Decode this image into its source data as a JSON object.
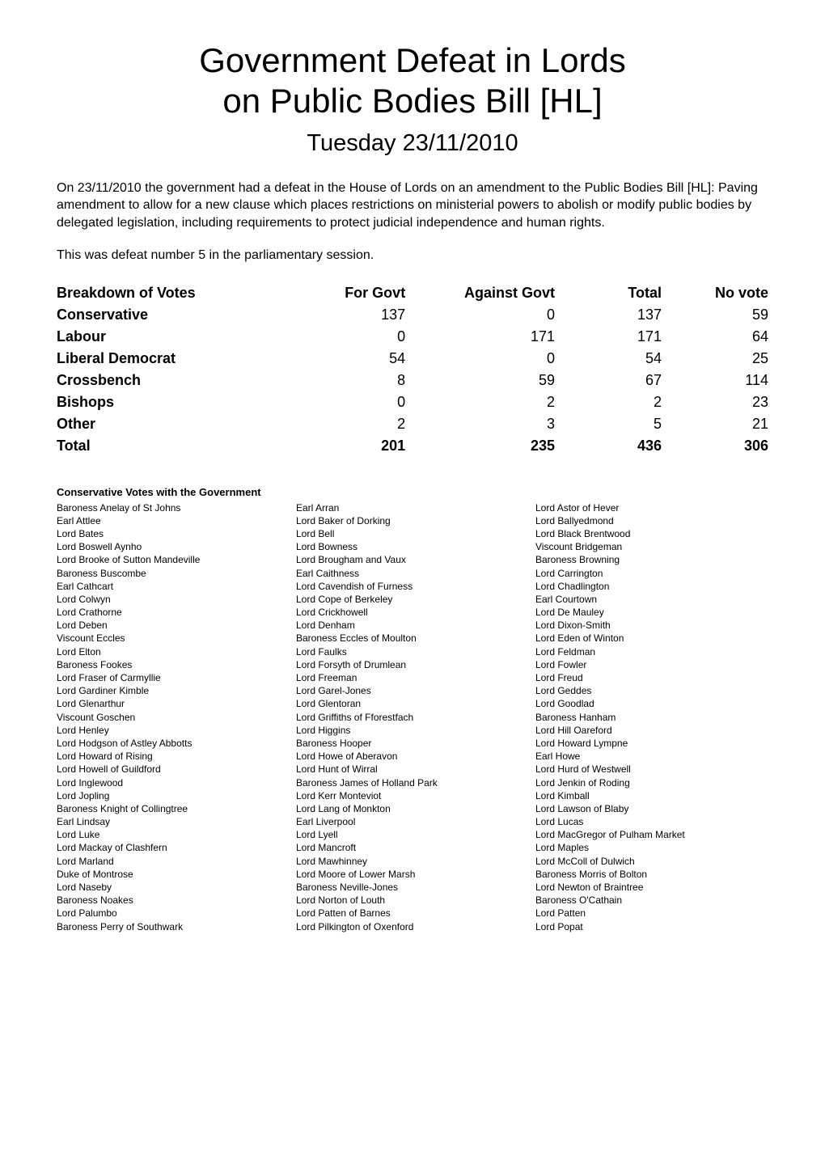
{
  "title": {
    "line1": "Government Defeat in Lords",
    "line2": "on Public Bodies Bill [HL]",
    "date": "Tuesday 23/11/2010"
  },
  "intro": "On 23/11/2010 the government had a defeat in the House of Lords on an amendment to the Public Bodies Bill [HL]: Paving amendment to allow for a new clause which places restrictions on ministerial powers to abolish or modify public bodies by delegated legislation, including requirements to protect judicial independence and human rights.",
  "defeat_no": "This was defeat number 5 in the parliamentary session.",
  "breakdown": {
    "headers": [
      "Breakdown of Votes",
      "For Govt",
      "Against Govt",
      "Total",
      "No vote"
    ],
    "rows": [
      {
        "party": "Conservative",
        "for": 137,
        "against": 0,
        "total": 137,
        "novote": 59
      },
      {
        "party": "Labour",
        "for": 0,
        "against": 171,
        "total": 171,
        "novote": 64
      },
      {
        "party": "Liberal Democrat",
        "for": 54,
        "against": 0,
        "total": 54,
        "novote": 25
      },
      {
        "party": "Crossbench",
        "for": 8,
        "against": 59,
        "total": 67,
        "novote": 114
      },
      {
        "party": "Bishops",
        "for": 0,
        "against": 2,
        "total": 2,
        "novote": 23
      },
      {
        "party": "Other",
        "for": 2,
        "against": 3,
        "total": 5,
        "novote": 21
      }
    ],
    "total_row": {
      "party": "Total",
      "for": 201,
      "against": 235,
      "total": 436,
      "novote": 306
    }
  },
  "conservative_votes": {
    "title": "Conservative Votes with the Government",
    "names": [
      "Baroness Anelay of St Johns",
      "Earl Arran",
      "Lord Astor of Hever",
      "Earl Attlee",
      "Lord Baker of Dorking",
      "Lord Ballyedmond",
      "Lord Bates",
      "Lord Bell",
      "Lord Black Brentwood",
      "Lord Boswell Aynho",
      "Lord Bowness",
      "Viscount Bridgeman",
      "Lord Brooke of Sutton Mandeville",
      "Lord Brougham and Vaux",
      "Baroness Browning",
      "Baroness Buscombe",
      "Earl Caithness",
      "Lord Carrington",
      "Earl Cathcart",
      "Lord Cavendish of Furness",
      "Lord Chadlington",
      "Lord Colwyn",
      "Lord Cope of Berkeley",
      "Earl Courtown",
      "Lord Crathorne",
      "Lord Crickhowell",
      "Lord De Mauley",
      "Lord Deben",
      "Lord Denham",
      "Lord Dixon-Smith",
      "Viscount Eccles",
      "Baroness Eccles of Moulton",
      "Lord Eden of Winton",
      "Lord Elton",
      "Lord Faulks",
      "Lord Feldman",
      "Baroness Fookes",
      "Lord Forsyth of Drumlean",
      "Lord Fowler",
      "Lord Fraser of Carmyllie",
      "Lord Freeman",
      "Lord Freud",
      "Lord Gardiner Kimble",
      "Lord Garel-Jones",
      "Lord Geddes",
      "Lord Glenarthur",
      "Lord Glentoran",
      "Lord Goodlad",
      "Viscount Goschen",
      "Lord Griffiths of Fforestfach",
      "Baroness Hanham",
      "Lord Henley",
      "Lord Higgins",
      "Lord Hill Oareford",
      "Lord Hodgson of Astley Abbotts",
      "Baroness Hooper",
      "Lord Howard Lympne",
      "Lord Howard of Rising",
      "Lord Howe of Aberavon",
      "Earl Howe",
      "Lord Howell of Guildford",
      "Lord Hunt of Wirral",
      "Lord Hurd of Westwell",
      "Lord Inglewood",
      "Baroness James of Holland Park",
      "Lord Jenkin of Roding",
      "Lord Jopling",
      "Lord Kerr Monteviot",
      "Lord Kimball",
      "Baroness Knight of Collingtree",
      "Lord Lang of Monkton",
      "Lord Lawson of Blaby",
      "Earl Lindsay",
      "Earl Liverpool",
      "Lord Lucas",
      "Lord Luke",
      "Lord Lyell",
      "Lord MacGregor of Pulham Market",
      "Lord Mackay of Clashfern",
      "Lord Mancroft",
      "Lord Maples",
      "Lord Marland",
      "Lord Mawhinney",
      "Lord McColl of Dulwich",
      "Duke of Montrose",
      "Lord Moore of Lower Marsh",
      "Baroness Morris of Bolton",
      "Lord Naseby",
      "Baroness Neville-Jones",
      "Lord Newton of Braintree",
      "Baroness Noakes",
      "Lord Norton of Louth",
      "Baroness O'Cathain",
      "Lord Palumbo",
      "Lord Patten of Barnes",
      "Lord Patten",
      "Baroness Perry of Southwark",
      "Lord Pilkington of Oxenford",
      "Lord Popat"
    ]
  },
  "table_style": {
    "col_widths_pct": [
      34,
      15,
      21,
      15,
      15
    ],
    "header_font_weight": "bold",
    "party_font_weight": "bold",
    "total_font_weight": "bold"
  },
  "colors": {
    "background": "#ffffff",
    "text": "#000000"
  },
  "fonts": {
    "title_pt": 42,
    "subtitle_pt": 29,
    "body_pt": 16,
    "table_pt": 18,
    "section_title_pt": 13,
    "names_pt": 12
  }
}
